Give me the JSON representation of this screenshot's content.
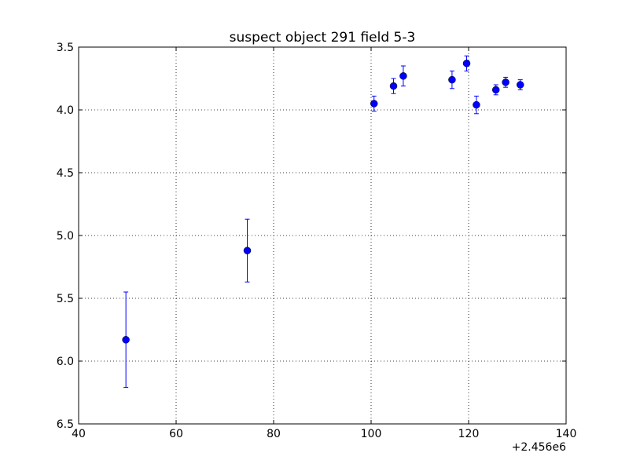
{
  "chart_data": {
    "type": "scatter",
    "title": "suspect object 291 field 5-3",
    "xlabel": "",
    "ylabel": "",
    "x_offset_label": "+2.456e6",
    "xlim": [
      40,
      140
    ],
    "ylim": [
      3.5,
      6.5
    ],
    "y_inverted": true,
    "grid": true,
    "x_ticks": [
      40,
      60,
      80,
      100,
      120,
      140
    ],
    "x_tick_labels": [
      "40",
      "60",
      "80",
      "100",
      "120",
      "140"
    ],
    "y_ticks": [
      3.5,
      4.0,
      4.5,
      5.0,
      5.5,
      6.0,
      6.5
    ],
    "y_tick_labels": [
      "3.5",
      "4.0",
      "4.5",
      "5.0",
      "5.5",
      "6.0",
      "6.5"
    ],
    "marker_color": "#0000ff",
    "series": [
      {
        "points": [
          {
            "x": 49.7,
            "y": 5.83,
            "err": 0.38
          },
          {
            "x": 74.6,
            "y": 5.12,
            "err": 0.25
          },
          {
            "x": 100.6,
            "y": 3.95,
            "err": 0.06
          },
          {
            "x": 104.6,
            "y": 3.81,
            "err": 0.06
          },
          {
            "x": 106.6,
            "y": 3.73,
            "err": 0.08
          },
          {
            "x": 116.6,
            "y": 3.76,
            "err": 0.07
          },
          {
            "x": 119.6,
            "y": 3.63,
            "err": 0.06
          },
          {
            "x": 121.6,
            "y": 3.96,
            "err": 0.07
          },
          {
            "x": 125.6,
            "y": 3.84,
            "err": 0.04
          },
          {
            "x": 127.6,
            "y": 3.78,
            "err": 0.04
          },
          {
            "x": 130.6,
            "y": 3.8,
            "err": 0.04
          }
        ]
      }
    ]
  }
}
